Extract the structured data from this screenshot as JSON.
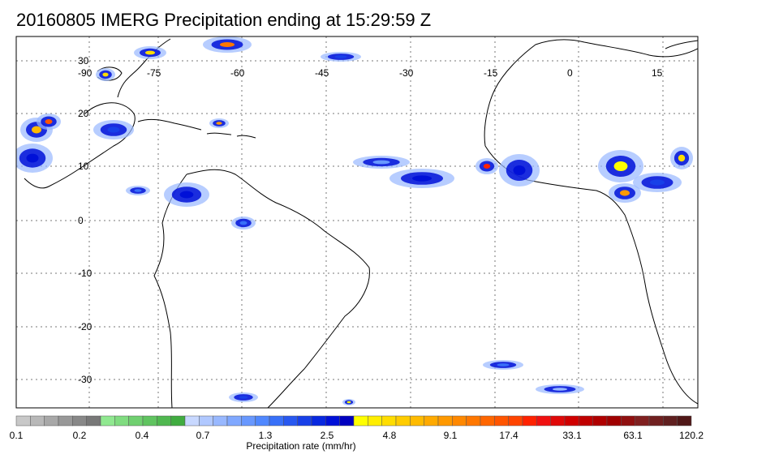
{
  "title": "20160805 IMERG Precipitation ending at 15:29:59 Z",
  "map": {
    "lon_labels": [
      "-90",
      "-75",
      "-60",
      "-45",
      "-30",
      "-15",
      "0",
      "15"
    ],
    "lat_labels": [
      "30",
      "20",
      "10",
      "0",
      "-10",
      "-20",
      "-30"
    ]
  },
  "colorbar": {
    "title": "Precipitation rate (mm/hr)",
    "labels": [
      "0.1",
      "0.2",
      "0.4",
      "0.7",
      "1.3",
      "2.5",
      "4.8",
      "9.1",
      "17.4",
      "33.1",
      "63.1",
      "120.2"
    ],
    "colors": [
      "#c8c8c8",
      "#b8b8b8",
      "#a8a8a8",
      "#989898",
      "#888888",
      "#787878",
      "#90e890",
      "#80dc80",
      "#70d070",
      "#60c460",
      "#50b850",
      "#40ac40",
      "#c8d8ff",
      "#b0c8ff",
      "#98b8ff",
      "#80a8ff",
      "#6898ff",
      "#5088ff",
      "#3870f8",
      "#2858f0",
      "#1840e8",
      "#0828e0",
      "#0010d8",
      "#0000c0",
      "#ffff00",
      "#ffee00",
      "#ffdd00",
      "#ffcc00",
      "#ffbb00",
      "#ffaa00",
      "#ff9900",
      "#ff8800",
      "#ff7700",
      "#ff6600",
      "#ff5500",
      "#ff4400",
      "#ff2200",
      "#f01010",
      "#e00808",
      "#d00000",
      "#c00000",
      "#b00000",
      "#a00000",
      "#901010",
      "#802020",
      "#702020",
      "#602020",
      "#501818"
    ]
  }
}
